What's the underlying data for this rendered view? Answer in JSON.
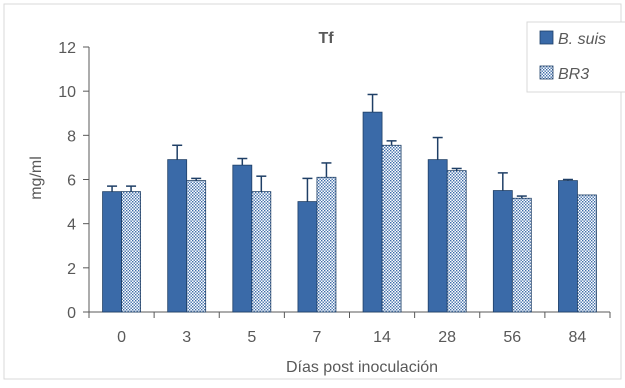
{
  "chart_data": {
    "type": "bar",
    "title": "Tf",
    "xlabel": "Días post inoculación",
    "ylabel": "mg/ml",
    "ylim": [
      0,
      12
    ],
    "yticks": [
      0,
      2,
      4,
      6,
      8,
      10,
      12
    ],
    "grid": false,
    "legend_position": "top-right",
    "categories": [
      "0",
      "3",
      "5",
      "7",
      "14",
      "28",
      "56",
      "84"
    ],
    "series": [
      {
        "name": "B. suis",
        "color": "#3a6aa8",
        "pattern": "solid",
        "values": [
          5.45,
          6.9,
          6.65,
          5.0,
          9.05,
          6.9,
          5.5,
          5.95
        ],
        "errors": [
          0.25,
          0.65,
          0.3,
          1.05,
          0.8,
          1.0,
          0.8,
          0.05
        ]
      },
      {
        "name": "BR3",
        "color": "#3a6aa8",
        "pattern": "dotted",
        "values": [
          5.45,
          5.95,
          5.45,
          6.1,
          7.55,
          6.4,
          5.15,
          5.3
        ],
        "errors": [
          0.25,
          0.1,
          0.7,
          0.65,
          0.2,
          0.1,
          0.1,
          0.0
        ]
      }
    ]
  }
}
